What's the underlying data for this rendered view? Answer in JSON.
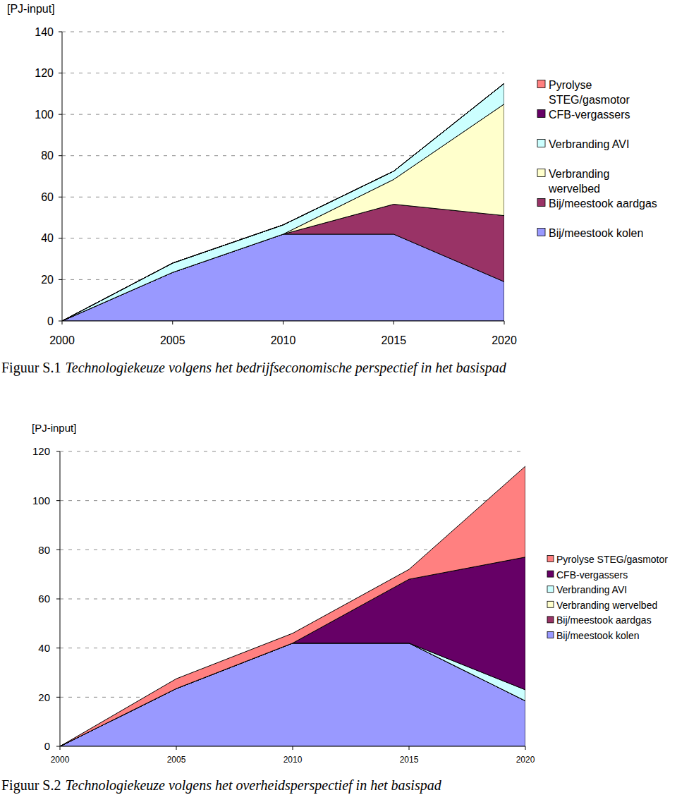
{
  "chart_data": [
    {
      "type": "area",
      "stacked": true,
      "grid": true,
      "legend": "right",
      "figure_label": "Figuur S.1",
      "title": "Technologiekeuze volgens het bedrijfseconomische perspectief in het basispad",
      "y_label": "[PJ-input]",
      "x": [
        2000,
        2005,
        2010,
        2015,
        2020
      ],
      "xlim": [
        2000,
        2020
      ],
      "xticks": [
        2000,
        2005,
        2010,
        2015,
        2020
      ],
      "ylim": [
        0,
        140
      ],
      "yticks": [
        0,
        20,
        40,
        60,
        80,
        100,
        120,
        140
      ],
      "series": [
        {
          "name": "Bij/meestook kolen",
          "color": "#9999ff",
          "values": [
            0,
            23.5,
            42,
            42,
            19
          ]
        },
        {
          "name": "Bij/meestook aardgas",
          "color": "#993366",
          "values": [
            0,
            0,
            0,
            14.5,
            32
          ]
        },
        {
          "name": "Verbranding wervelbed",
          "color": "#ffffcc",
          "values": [
            0,
            0,
            0,
            12,
            54
          ]
        },
        {
          "name": "Verbranding AVI",
          "color": "#ccffff",
          "values": [
            0,
            4.5,
            4.5,
            4,
            10
          ]
        },
        {
          "name": "CFB-vergassers",
          "color": "#660066",
          "values": [
            0,
            0,
            0,
            0,
            0
          ]
        },
        {
          "name": "Pyrolyse STEG/gasmotor",
          "color": "#ff8080",
          "values": [
            0,
            0,
            0,
            0,
            0
          ]
        }
      ]
    },
    {
      "type": "area",
      "stacked": true,
      "grid": true,
      "legend": "right",
      "figure_label": "Figuur S.2",
      "title": "Technologiekeuze volgens het overheidsperspectief in het basispad",
      "y_label": "[PJ-input]",
      "x": [
        2000,
        2005,
        2010,
        2015,
        2020
      ],
      "xlim": [
        2000,
        2020
      ],
      "xticks": [
        2000,
        2005,
        2010,
        2015,
        2020
      ],
      "ylim": [
        0,
        120
      ],
      "yticks": [
        0,
        20,
        40,
        60,
        80,
        100,
        120
      ],
      "series": [
        {
          "name": "Bij/meestook kolen",
          "color": "#9999ff",
          "values": [
            0,
            23.5,
            42,
            42,
            18.5
          ]
        },
        {
          "name": "Bij/meestook aardgas",
          "color": "#993366",
          "values": [
            0,
            0,
            0,
            0,
            0
          ]
        },
        {
          "name": "Verbranding wervelbed",
          "color": "#ffffcc",
          "values": [
            0,
            0,
            0,
            0,
            0
          ]
        },
        {
          "name": "Verbranding AVI",
          "color": "#ccffff",
          "values": [
            0,
            0,
            0,
            0,
            4.5
          ]
        },
        {
          "name": "CFB-vergassers",
          "color": "#660066",
          "values": [
            0,
            0,
            0,
            26,
            54
          ]
        },
        {
          "name": "Pyrolyse STEG/gasmotor",
          "color": "#ff8080",
          "values": [
            0,
            4,
            4,
            4,
            37
          ]
        }
      ]
    }
  ]
}
